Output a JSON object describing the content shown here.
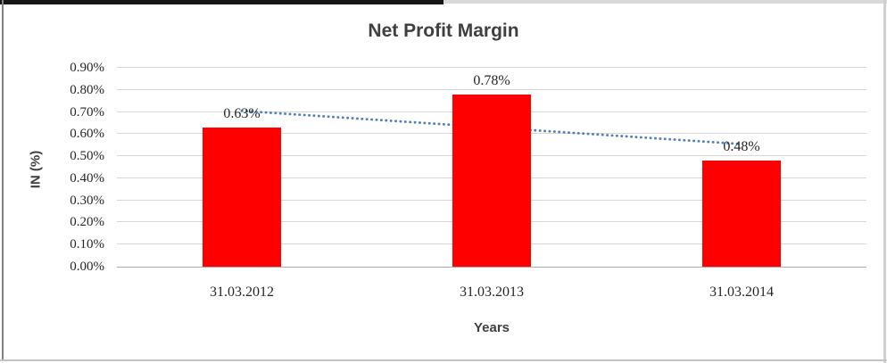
{
  "chart_data": {
    "type": "bar",
    "title": "Net Profit Margin",
    "xlabel": "Years",
    "ylabel": "IN (%)",
    "categories": [
      "31.03.2012",
      "31.03.2013",
      "31.03.2014"
    ],
    "values": [
      0.63,
      0.78,
      0.48
    ],
    "value_labels": [
      "0.63%",
      "0.78%",
      "0.48%"
    ],
    "unit": "%",
    "ylim": [
      0,
      0.9
    ],
    "ytick_labels": [
      "0.00%",
      "0.10%",
      "0.20%",
      "0.30%",
      "0.40%",
      "0.50%",
      "0.60%",
      "0.70%",
      "0.80%",
      "0.90%"
    ],
    "grid": true,
    "legend": "none",
    "bar_color": "#ff0000",
    "trendline": {
      "type": "linear",
      "style": "dotted",
      "color": "#4f81bd",
      "start_value": 0.705,
      "end_value": 0.555
    }
  },
  "palette": {
    "gridline": "#d6d6d6",
    "axis_line": "#a8a8a8",
    "heading_text": "#3f3f3f",
    "tick_text": "#262626"
  }
}
